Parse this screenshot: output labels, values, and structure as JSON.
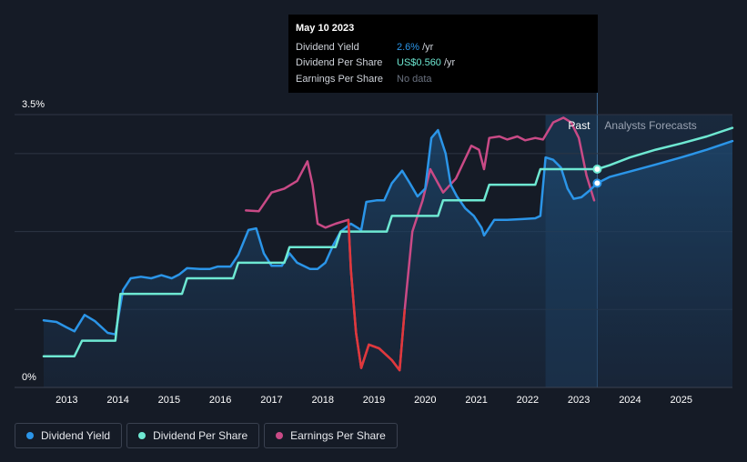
{
  "tooltip": {
    "date": "May 10 2023",
    "rows": [
      {
        "label": "Dividend Yield",
        "value": "2.6%",
        "unit": "/yr",
        "color": "#2b95e8"
      },
      {
        "label": "Dividend Per Share",
        "value": "US$0.560",
        "unit": "/yr",
        "color": "#6ee8d2"
      },
      {
        "label": "Earnings Per Share",
        "value": "No data",
        "unit": "",
        "color": "#6b7280"
      }
    ]
  },
  "regions": {
    "past": "Past",
    "forecast": "Analysts Forecasts"
  },
  "legend": [
    {
      "label": "Dividend Yield",
      "color": "#2b95e8"
    },
    {
      "label": "Dividend Per Share",
      "color": "#6ee8d2"
    },
    {
      "label": "Earnings Per Share",
      "color": "#c94a86"
    }
  ],
  "chart_data": {
    "type": "line",
    "title": "",
    "xlabel": "",
    "ylabel": "",
    "y_ticks": [
      "3.5%",
      "0%"
    ],
    "ylim": [
      0,
      3.5
    ],
    "xlim": [
      2012.55,
      2026.0
    ],
    "x_ticks": [
      "2013",
      "2014",
      "2015",
      "2016",
      "2017",
      "2018",
      "2019",
      "2020",
      "2021",
      "2022",
      "2023",
      "2024",
      "2025"
    ],
    "forecast_start": 2023.36,
    "highlight_start": 2022.35,
    "series": [
      {
        "name": "Dividend Yield",
        "color": "#2b95e8",
        "points": [
          [
            2012.55,
            0.86
          ],
          [
            2012.8,
            0.84
          ],
          [
            2013.0,
            0.77
          ],
          [
            2013.15,
            0.72
          ],
          [
            2013.35,
            0.93
          ],
          [
            2013.55,
            0.85
          ],
          [
            2013.8,
            0.7
          ],
          [
            2013.95,
            0.68
          ],
          [
            2014.1,
            1.25
          ],
          [
            2014.25,
            1.4
          ],
          [
            2014.45,
            1.42
          ],
          [
            2014.65,
            1.4
          ],
          [
            2014.85,
            1.44
          ],
          [
            2015.05,
            1.4
          ],
          [
            2015.2,
            1.45
          ],
          [
            2015.35,
            1.53
          ],
          [
            2015.6,
            1.52
          ],
          [
            2015.8,
            1.52
          ],
          [
            2015.95,
            1.55
          ],
          [
            2016.2,
            1.55
          ],
          [
            2016.35,
            1.7
          ],
          [
            2016.55,
            2.02
          ],
          [
            2016.7,
            2.04
          ],
          [
            2016.85,
            1.72
          ],
          [
            2017.0,
            1.56
          ],
          [
            2017.2,
            1.56
          ],
          [
            2017.35,
            1.72
          ],
          [
            2017.5,
            1.6
          ],
          [
            2017.75,
            1.52
          ],
          [
            2017.9,
            1.52
          ],
          [
            2018.05,
            1.6
          ],
          [
            2018.2,
            1.82
          ],
          [
            2018.35,
            2.0
          ],
          [
            2018.55,
            2.1
          ],
          [
            2018.75,
            2.02
          ],
          [
            2018.85,
            2.38
          ],
          [
            2019.05,
            2.4
          ],
          [
            2019.2,
            2.4
          ],
          [
            2019.35,
            2.62
          ],
          [
            2019.55,
            2.78
          ],
          [
            2019.7,
            2.62
          ],
          [
            2019.85,
            2.45
          ],
          [
            2020.0,
            2.55
          ],
          [
            2020.12,
            3.2
          ],
          [
            2020.25,
            3.3
          ],
          [
            2020.4,
            3.0
          ],
          [
            2020.5,
            2.6
          ],
          [
            2020.62,
            2.45
          ],
          [
            2020.78,
            2.3
          ],
          [
            2020.95,
            2.2
          ],
          [
            2021.1,
            2.05
          ],
          [
            2021.15,
            1.95
          ],
          [
            2021.25,
            2.05
          ],
          [
            2021.35,
            2.15
          ],
          [
            2021.6,
            2.15
          ],
          [
            2021.9,
            2.16
          ],
          [
            2022.15,
            2.17
          ],
          [
            2022.25,
            2.2
          ],
          [
            2022.35,
            2.95
          ],
          [
            2022.5,
            2.92
          ],
          [
            2022.65,
            2.82
          ],
          [
            2022.78,
            2.55
          ],
          [
            2022.9,
            2.42
          ],
          [
            2023.05,
            2.44
          ],
          [
            2023.2,
            2.52
          ],
          [
            2023.36,
            2.62
          ],
          [
            2023.6,
            2.7
          ],
          [
            2024.0,
            2.77
          ],
          [
            2024.5,
            2.86
          ],
          [
            2025.0,
            2.95
          ],
          [
            2025.5,
            3.05
          ],
          [
            2026.0,
            3.16
          ]
        ]
      },
      {
        "name": "Dividend Per Share",
        "color": "#6ee8d2",
        "points": [
          [
            2012.55,
            0.4
          ],
          [
            2013.15,
            0.4
          ],
          [
            2013.3,
            0.6
          ],
          [
            2013.95,
            0.6
          ],
          [
            2014.05,
            1.2
          ],
          [
            2015.25,
            1.2
          ],
          [
            2015.35,
            1.4
          ],
          [
            2016.25,
            1.4
          ],
          [
            2016.35,
            1.6
          ],
          [
            2017.25,
            1.6
          ],
          [
            2017.35,
            1.8
          ],
          [
            2018.25,
            1.8
          ],
          [
            2018.35,
            2.0
          ],
          [
            2019.25,
            2.0
          ],
          [
            2019.35,
            2.2
          ],
          [
            2020.25,
            2.2
          ],
          [
            2020.35,
            2.4
          ],
          [
            2021.15,
            2.4
          ],
          [
            2021.25,
            2.6
          ],
          [
            2022.15,
            2.6
          ],
          [
            2022.25,
            2.8
          ],
          [
            2023.36,
            2.8
          ],
          [
            2023.6,
            2.85
          ],
          [
            2024.0,
            2.95
          ],
          [
            2024.5,
            3.05
          ],
          [
            2025.0,
            3.13
          ],
          [
            2025.5,
            3.22
          ],
          [
            2026.0,
            3.33
          ]
        ]
      },
      {
        "name": "Earnings Per Share",
        "color": "#c94a86",
        "points": [
          [
            2016.5,
            2.27
          ],
          [
            2016.75,
            2.26
          ],
          [
            2017.0,
            2.5
          ],
          [
            2017.25,
            2.55
          ],
          [
            2017.5,
            2.65
          ],
          [
            2017.7,
            2.9
          ],
          [
            2017.8,
            2.6
          ],
          [
            2017.9,
            2.1
          ],
          [
            2018.05,
            2.05
          ],
          [
            2018.25,
            2.1
          ],
          [
            2018.5,
            2.15
          ],
          [
            2018.55,
            1.5
          ],
          [
            2018.65,
            0.7
          ],
          [
            2018.75,
            0.25
          ],
          [
            2018.9,
            0.55
          ],
          [
            2019.1,
            0.5
          ],
          [
            2019.35,
            0.35
          ],
          [
            2019.5,
            0.22
          ],
          [
            2019.6,
            1.0
          ],
          [
            2019.75,
            2.0
          ],
          [
            2019.95,
            2.4
          ],
          [
            2020.1,
            2.8
          ],
          [
            2020.35,
            2.5
          ],
          [
            2020.6,
            2.68
          ],
          [
            2020.9,
            3.1
          ],
          [
            2021.05,
            3.05
          ],
          [
            2021.15,
            2.8
          ],
          [
            2021.25,
            3.2
          ],
          [
            2021.45,
            3.22
          ],
          [
            2021.6,
            3.18
          ],
          [
            2021.8,
            3.22
          ],
          [
            2021.95,
            3.17
          ],
          [
            2022.15,
            3.2
          ],
          [
            2022.3,
            3.18
          ],
          [
            2022.5,
            3.4
          ],
          [
            2022.7,
            3.46
          ],
          [
            2022.85,
            3.4
          ],
          [
            2023.0,
            3.2
          ],
          [
            2023.15,
            2.72
          ],
          [
            2023.3,
            2.4
          ]
        ]
      }
    ]
  }
}
